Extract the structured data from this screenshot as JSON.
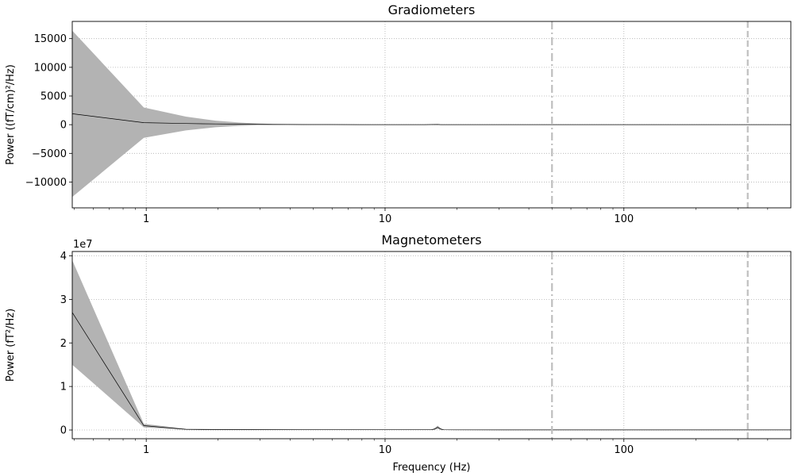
{
  "chart_data": [
    {
      "type": "area",
      "title": "Gradiometers",
      "xlabel": "",
      "ylabel": "Power ((fT/cm)²/Hz)",
      "xscale": "log",
      "xlim": [
        0.49,
        500
      ],
      "ylim": [
        -14500,
        18000
      ],
      "xticks": [
        1,
        10,
        100
      ],
      "xtick_labels": [
        "1",
        "10",
        "100"
      ],
      "yticks": [
        -10000,
        -5000,
        0,
        5000,
        10000,
        15000
      ],
      "ytick_labels": [
        "−10000",
        "−5000",
        "0",
        "5000",
        "10000",
        "15000"
      ],
      "grid": "dotted",
      "x": [
        0.49,
        0.977,
        1.465,
        1.953,
        2.441,
        2.93,
        3.418,
        3.906,
        4.883,
        5.86,
        7.81,
        9.77,
        14.6,
        16.6,
        17.1,
        19.5,
        50,
        100,
        200,
        330,
        500
      ],
      "mean": [
        1900,
        350,
        200,
        130,
        90,
        60,
        40,
        30,
        20,
        15,
        10,
        8,
        6,
        40,
        10,
        5,
        4,
        3,
        2,
        2,
        2
      ],
      "upper": [
        16400,
        3000,
        1400,
        700,
        380,
        220,
        130,
        90,
        60,
        45,
        30,
        22,
        15,
        60,
        20,
        12,
        10,
        8,
        6,
        5,
        5
      ],
      "lower": [
        -12600,
        -2300,
        -1000,
        -450,
        -200,
        -100,
        -50,
        -30,
        -20,
        -15,
        -10,
        -6,
        -4,
        20,
        0,
        -2,
        -2,
        -2,
        -2,
        -2,
        -2
      ],
      "vlines": [
        {
          "x": 50,
          "style": "dashdot",
          "color": "#bfbfbf"
        },
        {
          "x": 330,
          "style": "dashed",
          "color": "#bfbfbf"
        }
      ]
    },
    {
      "type": "area",
      "title": "Magnetometers",
      "xlabel": "Frequency (Hz)",
      "ylabel": "Power (fT²/Hz)",
      "offset_text": "1e7",
      "xscale": "log",
      "xlim": [
        0.49,
        500
      ],
      "ylim": [
        -0.2,
        4.1
      ],
      "xticks": [
        1,
        10,
        100
      ],
      "xtick_labels": [
        "1",
        "10",
        "100"
      ],
      "yticks": [
        0,
        1,
        2,
        3,
        4
      ],
      "ytick_labels": [
        "0",
        "1",
        "2",
        "3",
        "4"
      ],
      "grid": "dotted",
      "x": [
        0.49,
        0.977,
        1.465,
        1.953,
        2.93,
        4.883,
        9.77,
        15.6,
        16.1,
        16.6,
        17.1,
        17.6,
        19.5,
        50,
        100,
        200,
        330,
        500
      ],
      "mean": [
        2.7,
        0.1,
        0.015,
        0.01,
        0.008,
        0.006,
        0.005,
        0.005,
        0.02,
        0.06,
        0.02,
        0.005,
        0.004,
        0.003,
        0.003,
        0.002,
        0.002,
        0.002
      ],
      "upper": [
        3.9,
        0.14,
        0.03,
        0.02,
        0.015,
        0.012,
        0.01,
        0.01,
        0.04,
        0.1,
        0.04,
        0.01,
        0.008,
        0.006,
        0.005,
        0.004,
        0.004,
        0.004
      ],
      "lower": [
        1.5,
        0.06,
        0.005,
        0.004,
        0.003,
        0.002,
        0.002,
        0.001,
        0.005,
        0.03,
        0.005,
        0.001,
        0.001,
        0.001,
        0.001,
        0.001,
        0.001,
        0.001
      ],
      "vlines": [
        {
          "x": 50,
          "style": "dashdot",
          "color": "#bfbfbf"
        },
        {
          "x": 330,
          "style": "dashed",
          "color": "#bfbfbf"
        }
      ]
    }
  ]
}
